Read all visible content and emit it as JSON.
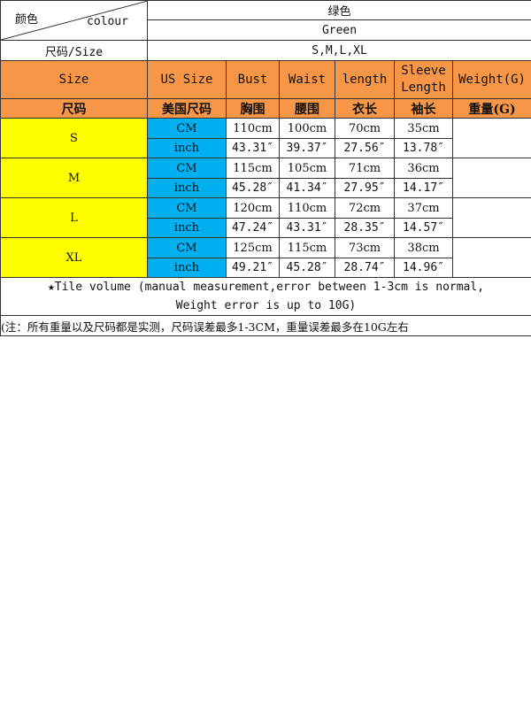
{
  "header": {
    "color_label_cn": "颜色",
    "color_label_en": "colour",
    "color_value_cn": "绿色",
    "color_value_en": "Green",
    "size_label": "尺码/Size",
    "size_value": "S,M,L,XL"
  },
  "columns_en": [
    "Size",
    "US Size",
    "Bust",
    "Waist",
    "length",
    "Sleeve Length",
    "Weight(G)"
  ],
  "columns_cn": [
    "尺码",
    "美国尺码",
    "胸围",
    "腰围",
    "衣长",
    "袖长",
    "重量(G)"
  ],
  "rows": [
    {
      "size": "S",
      "cm": {
        "unit": "CM",
        "bust": "110cm",
        "waist": "100cm",
        "length": "70cm",
        "sleeve": "35cm"
      },
      "inch": {
        "unit": "inch",
        "bust": "43.31″",
        "waist": "39.37″",
        "length": "27.56″",
        "sleeve": "13.78″"
      },
      "weight": ""
    },
    {
      "size": "M",
      "cm": {
        "unit": "CM",
        "bust": "115cm",
        "waist": "105cm",
        "length": "71cm",
        "sleeve": "36cm"
      },
      "inch": {
        "unit": "inch",
        "bust": "45.28″",
        "waist": "41.34″",
        "length": "27.95″",
        "sleeve": "14.17″"
      },
      "weight": ""
    },
    {
      "size": "L",
      "cm": {
        "unit": "CM",
        "bust": "120cm",
        "waist": "110cm",
        "length": "72cm",
        "sleeve": "37cm"
      },
      "inch": {
        "unit": "inch",
        "bust": "47.24″",
        "waist": "43.31″",
        "length": "28.35″",
        "sleeve": "14.57″"
      },
      "weight": ""
    },
    {
      "size": "XL",
      "cm": {
        "unit": "CM",
        "bust": "125cm",
        "waist": "115cm",
        "length": "73cm",
        "sleeve": "38cm"
      },
      "inch": {
        "unit": "inch",
        "bust": "49.21″",
        "waist": "45.28″",
        "length": "28.74″",
        "sleeve": "14.96″"
      },
      "weight": ""
    }
  ],
  "notes": {
    "en_line1": "★Tile volume (manual measurement,error between 1-3cm is normal,",
    "en_line2": "Weight error is up to 10G)",
    "cn": "(注：所有重量以及尺码都是实测，尺码误差最多1-3CM，重量误差最多在10G左右"
  },
  "colors": {
    "orange": "#f79646",
    "yellow": "#ffff00",
    "blue": "#00b0f0"
  }
}
